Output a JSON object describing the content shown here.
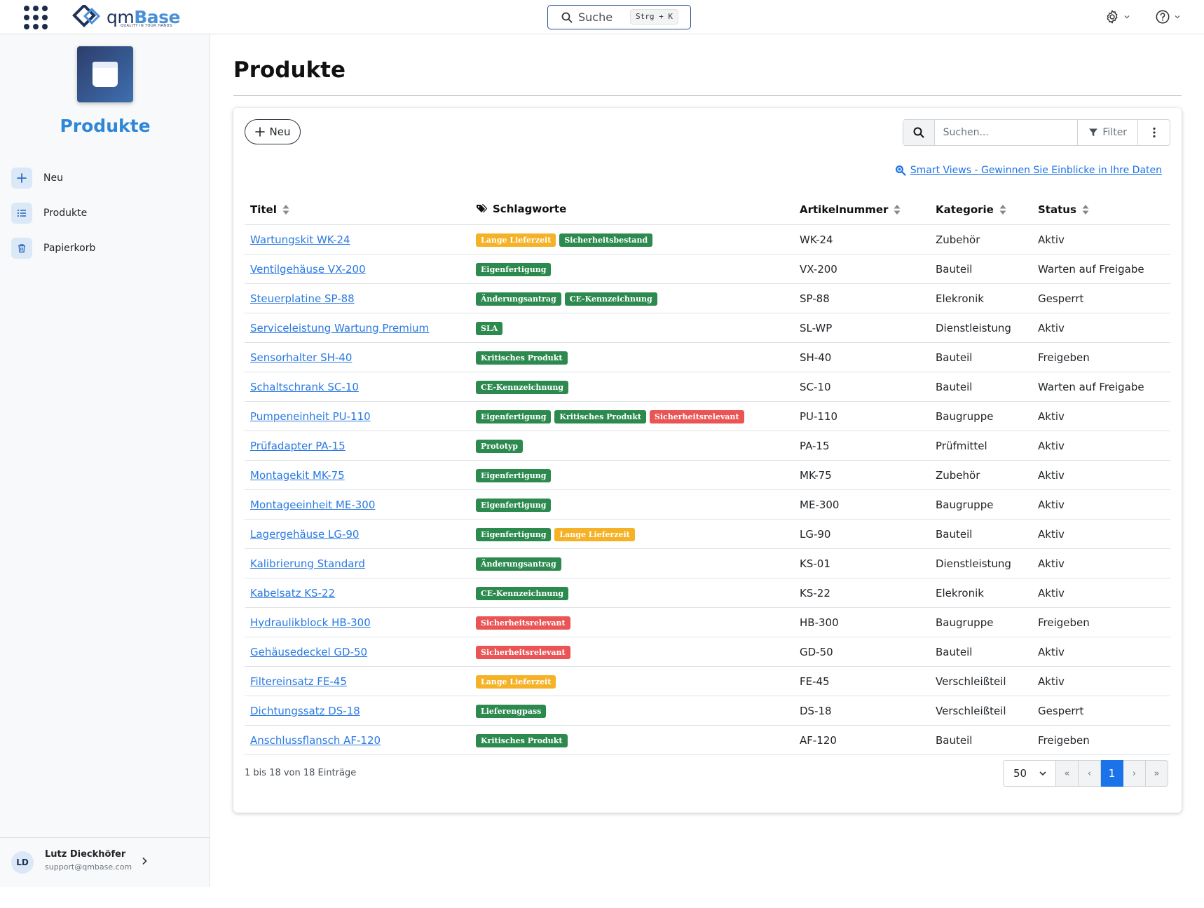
{
  "topbar": {
    "logo_prefix": "qm",
    "logo_suffix": "Base",
    "logo_tagline": "QUALITY IN YOUR HANDS",
    "search_label": "Suche",
    "search_shortcut": "Strg + K"
  },
  "sidebar": {
    "app_title": "Produkte",
    "items": [
      {
        "label": "Neu",
        "icon": "plus-icon"
      },
      {
        "label": "Produkte",
        "icon": "list-icon"
      },
      {
        "label": "Papierkorb",
        "icon": "trash-icon"
      }
    ],
    "user": {
      "initials": "LD",
      "name": "Lutz Dieckhöfer",
      "email": "support@qmbase.com"
    }
  },
  "main": {
    "page_title": "Produkte",
    "new_button": "Neu",
    "search_placeholder": "Suchen...",
    "filter_label": "Filter",
    "smart_views_link": "Smart Views - Gewinnen Sie Einblicke in Ihre Daten",
    "columns": {
      "title": "Titel",
      "tags": "Schlagworte",
      "article": "Artikelnummer",
      "category": "Kategorie",
      "status": "Status"
    },
    "rows": [
      {
        "title": "Wartungskit WK-24",
        "tags": [
          {
            "text": "Lange Lieferzeit",
            "color": "orange"
          },
          {
            "text": "Sicherheitsbestand",
            "color": "green"
          }
        ],
        "article": "WK-24",
        "category": "Zubehör",
        "status": "Aktiv"
      },
      {
        "title": "Ventilgehäuse VX-200",
        "tags": [
          {
            "text": "Eigenfertigung",
            "color": "green"
          }
        ],
        "article": "VX-200",
        "category": "Bauteil",
        "status": "Warten auf Freigabe"
      },
      {
        "title": "Steuerplatine SP-88",
        "tags": [
          {
            "text": "Änderungsantrag",
            "color": "green"
          },
          {
            "text": "CE-Kennzeichnung",
            "color": "green"
          }
        ],
        "article": "SP-88",
        "category": "Elekronik",
        "status": "Gesperrt"
      },
      {
        "title": "Serviceleistung Wartung Premium",
        "tags": [
          {
            "text": "SLA",
            "color": "green"
          }
        ],
        "article": "SL-WP",
        "category": "Dienstleistung",
        "status": "Aktiv"
      },
      {
        "title": "Sensorhalter SH-40",
        "tags": [
          {
            "text": "Kritisches Produkt",
            "color": "green"
          }
        ],
        "article": "SH-40",
        "category": "Bauteil",
        "status": "Freigeben"
      },
      {
        "title": "Schaltschrank SC-10",
        "tags": [
          {
            "text": "CE-Kennzeichnung",
            "color": "green"
          }
        ],
        "article": "SC-10",
        "category": "Bauteil",
        "status": "Warten auf Freigabe"
      },
      {
        "title": "Pumpeneinheit PU-110",
        "tags": [
          {
            "text": "Eigenfertigung",
            "color": "green"
          },
          {
            "text": "Kritisches Produkt",
            "color": "green"
          },
          {
            "text": "Sicherheitsrelevant",
            "color": "red"
          }
        ],
        "article": "PU-110",
        "category": "Baugruppe",
        "status": "Aktiv"
      },
      {
        "title": "Prüfadapter PA-15",
        "tags": [
          {
            "text": "Prototyp",
            "color": "green"
          }
        ],
        "article": "PA-15",
        "category": "Prüfmittel",
        "status": "Aktiv"
      },
      {
        "title": "Montagekit MK-75",
        "tags": [
          {
            "text": "Eigenfertigung",
            "color": "green"
          }
        ],
        "article": "MK-75",
        "category": "Zubehör",
        "status": "Aktiv"
      },
      {
        "title": "Montageeinheit ME-300",
        "tags": [
          {
            "text": "Eigenfertigung",
            "color": "green"
          }
        ],
        "article": "ME-300",
        "category": "Baugruppe",
        "status": "Aktiv"
      },
      {
        "title": "Lagergehäuse LG-90",
        "tags": [
          {
            "text": "Eigenfertigung",
            "color": "green"
          },
          {
            "text": "Lange Lieferzeit",
            "color": "orange"
          }
        ],
        "article": "LG-90",
        "category": "Bauteil",
        "status": "Aktiv"
      },
      {
        "title": "Kalibrierung Standard",
        "tags": [
          {
            "text": "Änderungsantrag",
            "color": "green"
          }
        ],
        "article": "KS-01",
        "category": "Dienstleistung",
        "status": "Aktiv"
      },
      {
        "title": "Kabelsatz KS-22",
        "tags": [
          {
            "text": "CE-Kennzeichnung",
            "color": "green"
          }
        ],
        "article": "KS-22",
        "category": "Elekronik",
        "status": "Aktiv"
      },
      {
        "title": "Hydraulikblock HB-300",
        "tags": [
          {
            "text": "Sicherheitsrelevant",
            "color": "red"
          }
        ],
        "article": "HB-300",
        "category": "Baugruppe",
        "status": "Freigeben"
      },
      {
        "title": "Gehäusedeckel GD-50",
        "tags": [
          {
            "text": "Sicherheitsrelevant",
            "color": "red"
          }
        ],
        "article": "GD-50",
        "category": "Bauteil",
        "status": "Aktiv"
      },
      {
        "title": "Filtereinsatz FE-45",
        "tags": [
          {
            "text": "Lange Lieferzeit",
            "color": "orange"
          }
        ],
        "article": "FE-45",
        "category": "Verschleißteil",
        "status": "Aktiv"
      },
      {
        "title": "Dichtungssatz DS-18",
        "tags": [
          {
            "text": "Lieferengpass",
            "color": "green"
          }
        ],
        "article": "DS-18",
        "category": "Verschleißteil",
        "status": "Gesperrt"
      },
      {
        "title": "Anschlussflansch AF-120",
        "tags": [
          {
            "text": "Kritisches Produkt",
            "color": "green"
          }
        ],
        "article": "AF-120",
        "category": "Bauteil",
        "status": "Freigeben"
      }
    ],
    "footer_info": "1 bis 18 von 18 Einträge",
    "pagination": {
      "page_size": "50",
      "first": "«",
      "prev": "‹",
      "current": "1",
      "next": "›",
      "last": "»"
    }
  },
  "colors": {
    "accent": "#1a73e8",
    "tag_green": "#2c8a4f",
    "tag_orange": "#f5b226",
    "tag_red": "#ea5455",
    "app_title": "#2f86d6"
  }
}
